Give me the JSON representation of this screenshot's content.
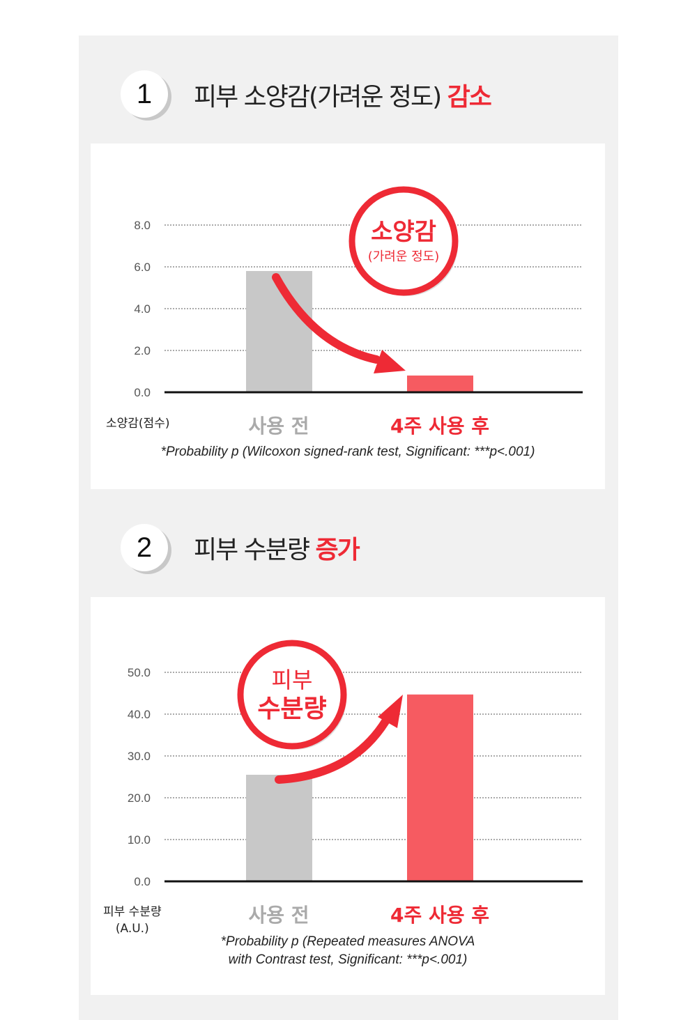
{
  "sections": [
    {
      "number": "1",
      "title_plain": "피부 소양감(가려운 정도) ",
      "title_highlight": "감소"
    },
    {
      "number": "2",
      "title_plain": "피부 수분량 ",
      "title_highlight": "증가"
    }
  ],
  "colors": {
    "accent": "#ee2a35",
    "bar_before": "#c8c8c8",
    "bar_after": "#f65b61",
    "panel": "#f1f1f1"
  },
  "chart_data": [
    {
      "type": "bar",
      "categories": [
        "사용 전",
        "4주 사용 후"
      ],
      "values": [
        5.8,
        0.8
      ],
      "ylabel": "소양감(점수)",
      "ylim": [
        0,
        8
      ],
      "yticks": [
        "0.0",
        "2.0",
        "4.0",
        "6.0",
        "8.0"
      ],
      "grid": true,
      "badge": {
        "main": "소양감",
        "sub": "(가려운 정도)"
      },
      "trend_arrow": "down",
      "note": "*Probability p (Wilcoxon signed-rank test, Significant: ***p<.001)"
    },
    {
      "type": "bar",
      "categories": [
        "사용 전",
        "4주 사용 후"
      ],
      "values": [
        25.5,
        44.7
      ],
      "ylabel": "피부 수분량\n(A.U.)",
      "ylabel_lines": [
        "피부 수분량",
        "(A.U.)"
      ],
      "ylim": [
        0,
        50
      ],
      "yticks": [
        "0.0",
        "10.0",
        "20.0",
        "30.0",
        "40.0",
        "50.0"
      ],
      "grid": true,
      "badge": {
        "main_lines": [
          "피부",
          "수분량"
        ]
      },
      "trend_arrow": "up",
      "note_lines": [
        "*Probability p (Repeated measures ANOVA",
        "with Contrast test, Significant: ***p<.001)"
      ]
    }
  ]
}
